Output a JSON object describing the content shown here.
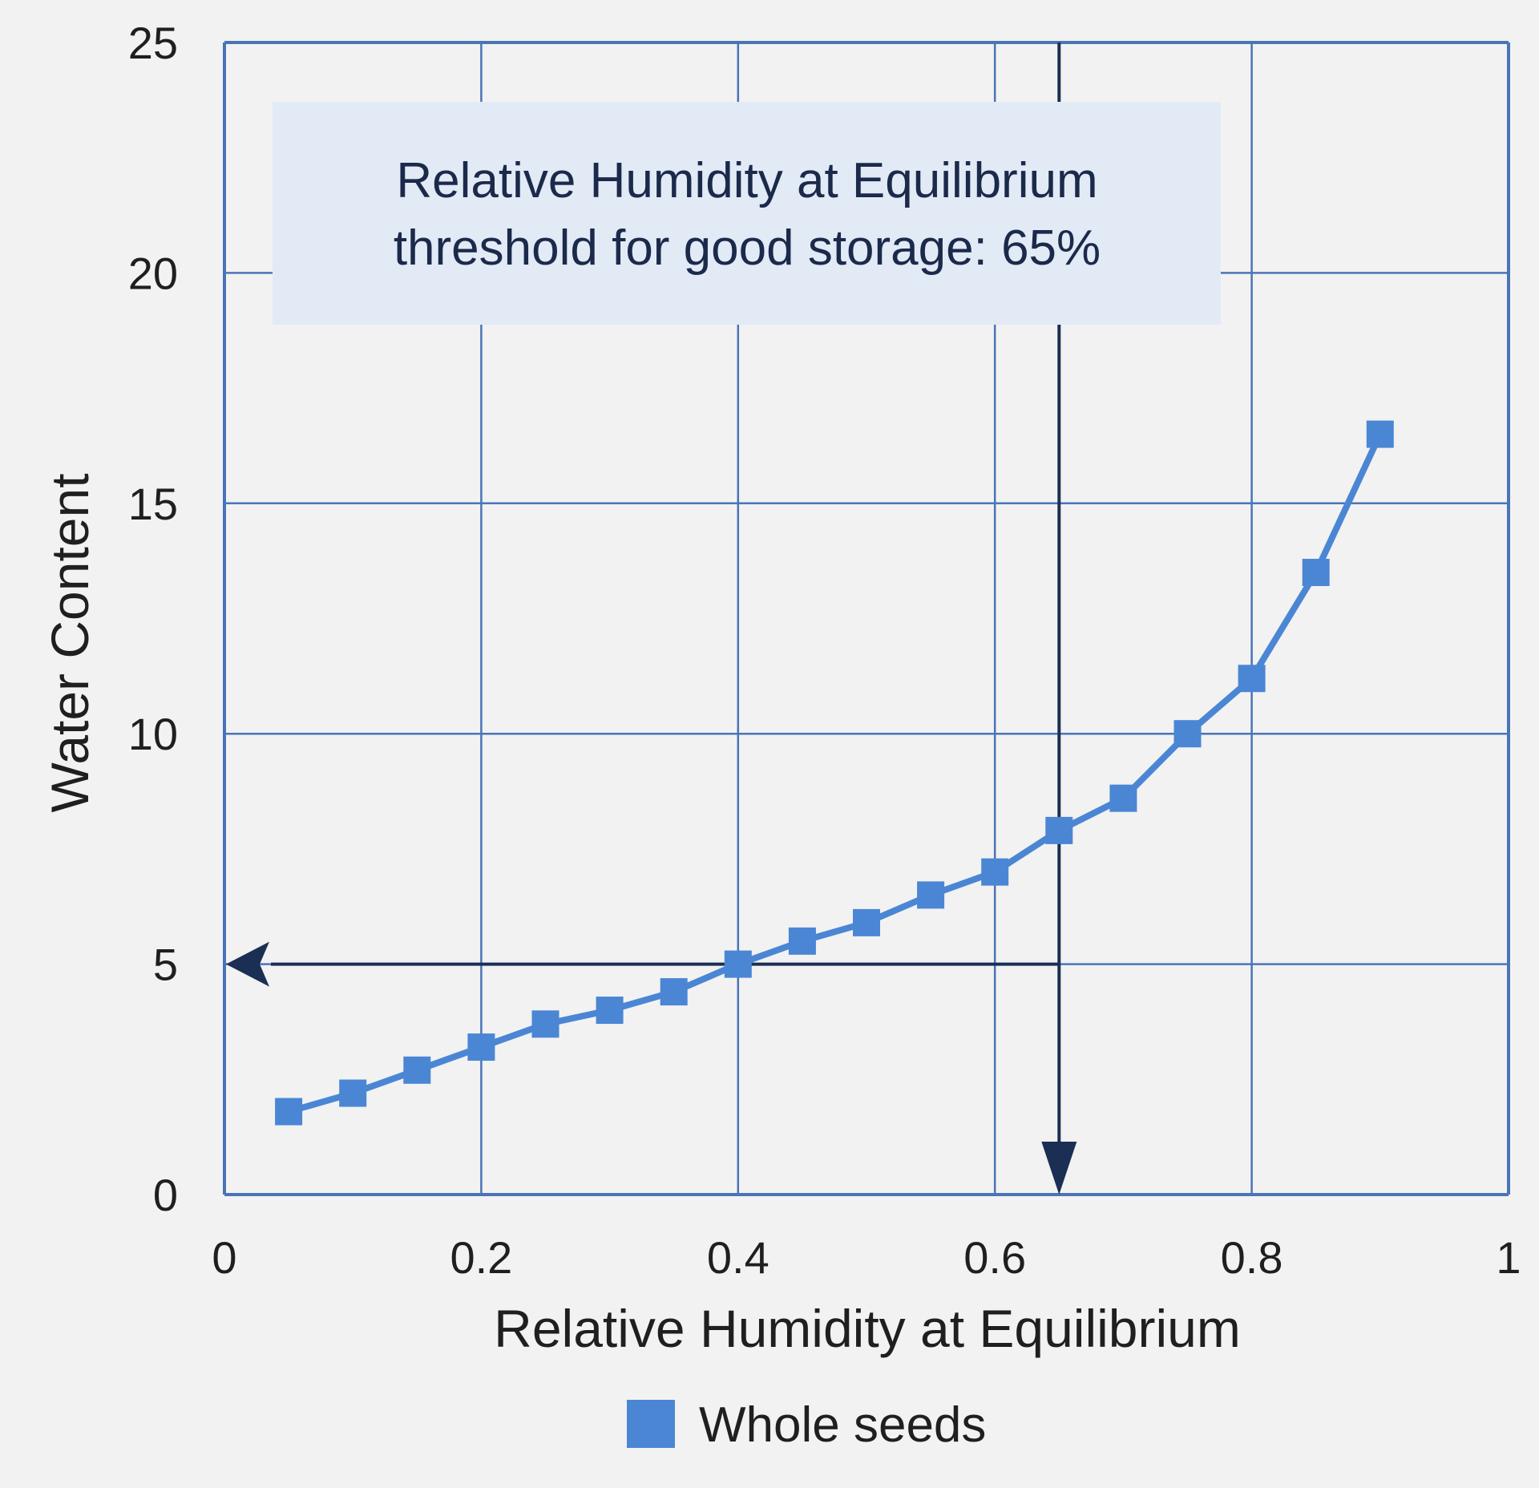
{
  "colors": {
    "background": "#f2f2f2",
    "grid": "#4a74b8",
    "series": "#4a86d4",
    "guide_lines": "#1b2f55",
    "annotation_box": "#e2eaf6",
    "text": "#1f1f1f"
  },
  "chart_data": {
    "type": "line",
    "xlabel": "Relative Humidity at Equilibrium",
    "ylabel": "Water Content",
    "xlim": [
      0,
      1
    ],
    "ylim": [
      0,
      25
    ],
    "x_ticks": [
      0,
      0.2,
      0.4,
      0.6,
      0.8,
      1
    ],
    "x_tick_labels": [
      "0",
      "0.2",
      "0.4",
      "0.6",
      "0.8",
      "1"
    ],
    "y_ticks": [
      0,
      5,
      10,
      15,
      20,
      25
    ],
    "y_tick_labels": [
      "0",
      "5",
      "10",
      "15",
      "20",
      "25"
    ],
    "grid": true,
    "legend_position": "bottom",
    "series": [
      {
        "name": "Whole seeds",
        "marker": "square",
        "color": "#4a86d4",
        "x": [
          0.05,
          0.1,
          0.15,
          0.2,
          0.25,
          0.3,
          0.35,
          0.4,
          0.45,
          0.5,
          0.55,
          0.6,
          0.65,
          0.7,
          0.75,
          0.8,
          0.85,
          0.9
        ],
        "y": [
          1.8,
          2.2,
          2.7,
          3.2,
          3.7,
          4.0,
          4.4,
          5.0,
          5.5,
          5.9,
          6.5,
          7.0,
          7.9,
          8.6,
          10.0,
          11.2,
          13.5,
          16.5
        ]
      }
    ],
    "annotations": {
      "threshold_x": 0.65,
      "threshold_y": 5,
      "box_lines": [
        "Relative Humidity at Equilibrium",
        "threshold for good storage: 65%"
      ]
    }
  }
}
